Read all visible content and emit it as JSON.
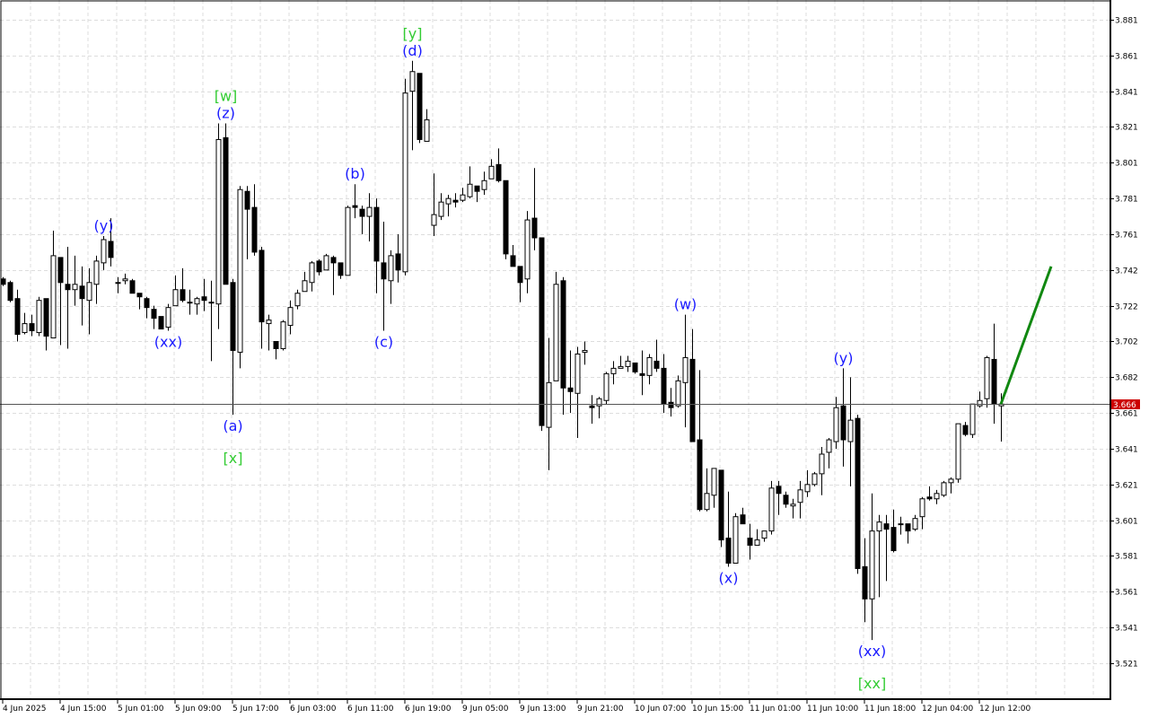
{
  "chart_data": {
    "type": "candlestick",
    "title": "",
    "timeframe_hint": "hourly",
    "ohlc_order": [
      "open",
      "high",
      "low",
      "close"
    ],
    "ylim": [
      3.511,
      3.892
    ],
    "y_ticks": [
      "3.881",
      "3.861",
      "3.841",
      "3.821",
      "3.801",
      "3.781",
      "3.761",
      "3.742",
      "3.722",
      "3.702",
      "3.682",
      "3.661",
      "3.641",
      "3.621",
      "3.601",
      "3.581",
      "3.561",
      "3.541",
      "3.521"
    ],
    "x_tick_every_bars": 8,
    "x_ticks": [
      "4 Jun 2025",
      "4 Jun 15:00",
      "5 Jun 01:00",
      "5 Jun 09:00",
      "5 Jun 17:00",
      "6 Jun 03:00",
      "6 Jun 11:00",
      "6 Jun 19:00",
      "9 Jun 05:00",
      "9 Jun 13:00",
      "9 Jun 21:00",
      "10 Jun 07:00",
      "10 Jun 15:00",
      "11 Jun 01:00",
      "11 Jun 10:00",
      "11 Jun 18:00",
      "12 Jun 04:00",
      "12 Jun 12:00"
    ],
    "grid": true,
    "current_price": "3.666",
    "colors": {
      "bull_body": "#ffffff",
      "bear_body": "#000000",
      "outline": "#000000",
      "current_price_tag": "#cc0000",
      "wave_minor": "#1a1aff",
      "wave_major": "#33cc33",
      "projection": "#118811",
      "grid": "#dddddd"
    },
    "candles": [
      [
        3.736,
        3.737,
        3.732,
        3.733
      ],
      [
        3.734,
        3.735,
        3.723,
        3.724
      ],
      [
        3.725,
        3.73,
        3.701,
        3.705
      ],
      [
        3.706,
        3.717,
        3.705,
        3.711
      ],
      [
        3.711,
        3.716,
        3.704,
        3.707
      ],
      [
        3.706,
        3.726,
        3.704,
        3.724
      ],
      [
        3.725,
        3.725,
        3.696,
        3.704
      ],
      [
        3.703,
        3.763,
        3.703,
        3.749
      ],
      [
        3.748,
        3.748,
        3.699,
        3.734
      ],
      [
        3.733,
        3.754,
        3.697,
        3.73
      ],
      [
        3.73,
        3.749,
        3.721,
        3.733
      ],
      [
        3.732,
        3.743,
        3.71,
        3.725
      ],
      [
        3.724,
        3.742,
        3.705,
        3.734
      ],
      [
        3.733,
        3.749,
        3.722,
        3.746
      ],
      [
        3.745,
        3.76,
        3.741,
        3.758
      ],
      [
        3.757,
        3.77,
        3.743,
        3.748
      ],
      [
        3.734,
        3.737,
        3.728,
        3.734
      ],
      [
        3.735,
        3.739,
        3.733,
        3.736
      ],
      [
        3.735,
        3.736,
        3.728,
        3.728
      ],
      [
        3.728,
        3.728,
        3.719,
        3.726
      ],
      [
        3.725,
        3.726,
        3.714,
        3.72
      ],
      [
        3.719,
        3.721,
        3.708,
        3.714
      ],
      [
        3.715,
        3.715,
        3.708,
        3.708
      ],
      [
        3.709,
        3.722,
        3.707,
        3.72
      ],
      [
        3.721,
        3.738,
        3.721,
        3.73
      ],
      [
        3.73,
        3.742,
        3.723,
        3.724
      ],
      [
        3.723,
        3.73,
        3.716,
        3.723
      ],
      [
        3.722,
        3.726,
        3.716,
        3.725
      ],
      [
        3.726,
        3.736,
        3.718,
        3.724
      ],
      [
        3.723,
        3.735,
        3.69,
        3.723
      ],
      [
        3.722,
        3.823,
        3.708,
        3.814
      ],
      [
        3.815,
        3.823,
        3.733,
        3.733
      ],
      [
        3.734,
        3.736,
        3.66,
        3.696
      ],
      [
        3.695,
        3.788,
        3.686,
        3.786
      ],
      [
        3.785,
        3.788,
        3.747,
        3.775
      ],
      [
        3.776,
        3.789,
        3.749,
        3.751
      ],
      [
        3.752,
        3.754,
        3.697,
        3.712
      ],
      [
        3.711,
        3.716,
        3.696,
        3.713
      ],
      [
        3.701,
        3.701,
        3.691,
        3.697
      ],
      [
        3.697,
        3.713,
        3.696,
        3.712
      ],
      [
        3.71,
        3.724,
        3.705,
        3.72
      ],
      [
        3.721,
        3.73,
        3.719,
        3.728
      ],
      [
        3.729,
        3.74,
        3.729,
        3.735
      ],
      [
        3.734,
        3.746,
        3.729,
        3.745
      ],
      [
        3.746,
        3.747,
        3.738,
        3.74
      ],
      [
        3.741,
        3.75,
        3.741,
        3.749
      ],
      [
        3.748,
        3.749,
        3.727,
        3.745
      ],
      [
        3.745,
        3.745,
        3.736,
        3.738
      ],
      [
        3.738,
        3.777,
        3.738,
        3.776
      ],
      [
        3.777,
        3.789,
        3.77,
        3.776
      ],
      [
        3.775,
        3.777,
        3.761,
        3.771
      ],
      [
        3.771,
        3.784,
        3.757,
        3.776
      ],
      [
        3.776,
        3.781,
        3.728,
        3.746
      ],
      [
        3.745,
        3.768,
        3.707,
        3.736
      ],
      [
        3.735,
        3.752,
        3.722,
        3.749
      ],
      [
        3.75,
        3.761,
        3.734,
        3.741
      ],
      [
        3.74,
        3.848,
        3.738,
        3.84
      ],
      [
        3.841,
        3.858,
        3.808,
        3.852
      ],
      [
        3.851,
        3.851,
        3.812,
        3.814
      ],
      [
        3.813,
        3.831,
        3.813,
        3.825
      ],
      [
        3.766,
        3.795,
        3.76,
        3.772
      ],
      [
        3.771,
        3.784,
        3.769,
        3.779
      ],
      [
        3.778,
        3.783,
        3.771,
        3.781
      ],
      [
        3.78,
        3.784,
        3.776,
        3.779
      ],
      [
        3.78,
        3.787,
        3.779,
        3.783
      ],
      [
        3.782,
        3.799,
        3.781,
        3.789
      ],
      [
        3.788,
        3.788,
        3.779,
        3.785
      ],
      [
        3.786,
        3.796,
        3.783,
        3.791
      ],
      [
        3.792,
        3.803,
        3.792,
        3.799
      ],
      [
        3.8,
        3.809,
        3.79,
        3.791
      ],
      [
        3.791,
        3.791,
        3.747,
        3.75
      ],
      [
        3.749,
        3.755,
        3.743,
        3.743
      ],
      [
        3.743,
        3.743,
        3.723,
        3.734
      ],
      [
        3.736,
        3.774,
        3.728,
        3.769
      ],
      [
        3.77,
        3.798,
        3.752,
        3.759
      ],
      [
        3.759,
        3.759,
        3.651,
        3.654
      ],
      [
        3.653,
        3.703,
        3.629,
        3.678
      ],
      [
        3.679,
        3.74,
        3.679,
        3.733
      ],
      [
        3.735,
        3.737,
        3.66,
        3.675
      ],
      [
        3.675,
        3.696,
        3.661,
        3.673
      ],
      [
        3.672,
        3.698,
        3.647,
        3.694
      ],
      [
        3.695,
        3.701,
        3.688,
        3.696
      ],
      [
        3.665,
        3.671,
        3.655,
        3.664
      ],
      [
        3.665,
        3.67,
        3.658,
        3.669
      ],
      [
        3.668,
        3.684,
        3.666,
        3.683
      ],
      [
        3.683,
        3.69,
        3.677,
        3.686
      ],
      [
        3.686,
        3.693,
        3.686,
        3.687
      ],
      [
        3.687,
        3.693,
        3.684,
        3.69
      ],
      [
        3.689,
        3.689,
        3.683,
        3.684
      ],
      [
        3.683,
        3.696,
        3.671,
        3.682
      ],
      [
        3.682,
        3.694,
        3.677,
        3.692
      ],
      [
        3.69,
        3.702,
        3.684,
        3.686
      ],
      [
        3.686,
        3.694,
        3.661,
        3.666
      ],
      [
        3.667,
        3.675,
        3.659,
        3.664
      ],
      [
        3.665,
        3.682,
        3.664,
        3.679
      ],
      [
        3.678,
        3.716,
        3.653,
        3.692
      ],
      [
        3.691,
        3.708,
        3.645,
        3.645
      ],
      [
        3.646,
        3.685,
        3.606,
        3.607
      ],
      [
        3.607,
        3.63,
        3.606,
        3.616
      ],
      [
        3.615,
        3.63,
        3.608,
        3.63
      ],
      [
        3.629,
        3.629,
        3.586,
        3.59
      ],
      [
        3.591,
        3.617,
        3.575,
        3.577
      ],
      [
        3.577,
        3.605,
        3.577,
        3.603
      ],
      [
        3.604,
        3.608,
        3.599,
        3.599
      ],
      [
        3.591,
        3.599,
        3.579,
        3.587
      ],
      [
        3.587,
        3.596,
        3.587,
        3.59
      ],
      [
        3.591,
        3.595,
        3.589,
        3.595
      ],
      [
        3.595,
        3.623,
        3.593,
        3.619
      ],
      [
        3.62,
        3.623,
        3.604,
        3.616
      ],
      [
        3.615,
        3.617,
        3.608,
        3.61
      ],
      [
        3.609,
        3.613,
        3.602,
        3.61
      ],
      [
        3.611,
        3.623,
        3.602,
        3.618
      ],
      [
        3.617,
        3.629,
        3.614,
        3.621
      ],
      [
        3.621,
        3.628,
        3.62,
        3.627
      ],
      [
        3.627,
        3.642,
        3.615,
        3.638
      ],
      [
        3.639,
        3.647,
        3.63,
        3.646
      ],
      [
        3.645,
        3.67,
        3.641,
        3.664
      ],
      [
        3.665,
        3.686,
        3.631,
        3.646
      ],
      [
        3.645,
        3.681,
        3.62,
        3.657
      ],
      [
        3.658,
        3.66,
        3.571,
        3.574
      ],
      [
        3.575,
        3.591,
        3.544,
        3.557
      ],
      [
        3.557,
        3.616,
        3.534,
        3.595
      ],
      [
        3.595,
        3.604,
        3.558,
        3.6
      ],
      [
        3.599,
        3.604,
        3.567,
        3.596
      ],
      [
        3.597,
        3.607,
        3.583,
        3.584
      ],
      [
        3.599,
        3.603,
        3.593,
        3.599
      ],
      [
        3.599,
        3.599,
        3.588,
        3.595
      ],
      [
        3.596,
        3.604,
        3.595,
        3.602
      ],
      [
        3.603,
        3.614,
        3.596,
        3.613
      ],
      [
        3.614,
        3.62,
        3.612,
        3.613
      ],
      [
        3.613,
        3.618,
        3.61,
        3.616
      ],
      [
        3.615,
        3.623,
        3.614,
        3.622
      ],
      [
        3.622,
        3.625,
        3.616,
        3.624
      ],
      [
        3.624,
        3.655,
        3.622,
        3.655
      ],
      [
        3.654,
        3.656,
        3.648,
        3.649
      ],
      [
        3.649,
        3.666,
        3.647,
        3.666
      ],
      [
        3.665,
        3.673,
        3.664,
        3.668
      ],
      [
        3.669,
        3.693,
        3.664,
        3.692
      ],
      [
        3.691,
        3.711,
        3.655,
        3.666
      ],
      [
        3.665,
        3.672,
        3.645,
        3.666
      ]
    ],
    "wave_labels": [
      {
        "text": "(y)",
        "bar": 14,
        "side": "above",
        "level": 0,
        "color": "wave_minor"
      },
      {
        "text": "(xx)",
        "bar": 23,
        "side": "below",
        "level": 0,
        "color": "wave_minor"
      },
      {
        "text": "(z)",
        "bar": 31,
        "side": "above",
        "level": 0,
        "color": "wave_minor"
      },
      {
        "text": "[w]",
        "bar": 31,
        "side": "above",
        "level": 1,
        "color": "wave_major"
      },
      {
        "text": "(a)",
        "bar": 32,
        "side": "below",
        "level": 0,
        "color": "wave_minor"
      },
      {
        "text": "[x]",
        "bar": 32,
        "side": "below",
        "level": 1,
        "color": "wave_major"
      },
      {
        "text": "(b)",
        "bar": 49,
        "side": "above",
        "level": 0,
        "color": "wave_minor"
      },
      {
        "text": "(c)",
        "bar": 53,
        "side": "below",
        "level": 0,
        "color": "wave_minor"
      },
      {
        "text": "(d)",
        "bar": 57,
        "side": "above",
        "level": 0,
        "color": "wave_minor"
      },
      {
        "text": "[y]",
        "bar": 57,
        "side": "above",
        "level": 1,
        "color": "wave_major"
      },
      {
        "text": "(w)",
        "bar": 95,
        "side": "above",
        "level": 0,
        "color": "wave_minor"
      },
      {
        "text": "(x)",
        "bar": 101,
        "side": "below",
        "level": 0,
        "color": "wave_minor"
      },
      {
        "text": "(y)",
        "bar": 117,
        "side": "above",
        "level": 0,
        "color": "wave_minor"
      },
      {
        "text": "(xx)",
        "bar": 121,
        "side": "below",
        "level": 0,
        "color": "wave_minor"
      },
      {
        "text": "[xx]",
        "bar": 121,
        "side": "below",
        "level": 1,
        "color": "wave_major"
      }
    ],
    "projection": {
      "from_bar": 139,
      "from_price": 3.666,
      "to_bar": 146,
      "to_price": 3.743
    }
  }
}
